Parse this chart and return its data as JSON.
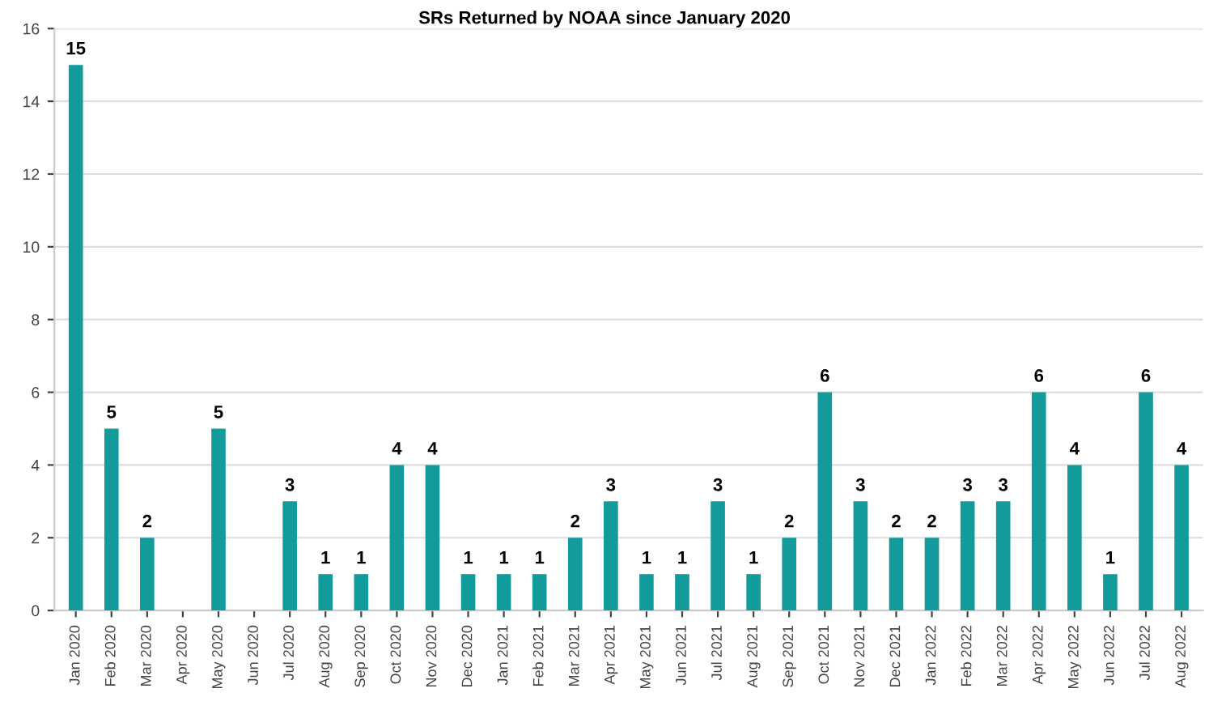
{
  "chart_data": {
    "type": "bar",
    "title": "SRs Returned by NOAA since January 2020",
    "categories": [
      "Jan 2020",
      "Feb 2020",
      "Mar 2020",
      "Apr 2020",
      "May 2020",
      "Jun 2020",
      "Jul 2020",
      "Aug 2020",
      "Sep 2020",
      "Oct 2020",
      "Nov 2020",
      "Dec 2020",
      "Jan 2021",
      "Feb 2021",
      "Mar 2021",
      "Apr 2021",
      "May 2021",
      "Jun 2021",
      "Jul 2021",
      "Aug 2021",
      "Sep 2021",
      "Oct 2021",
      "Nov 2021",
      "Dec 2021",
      "Jan 2022",
      "Feb 2022",
      "Mar 2022",
      "Apr 2022",
      "May 2022",
      "Jun 2022",
      "Jul 2022",
      "Aug 2022"
    ],
    "values": [
      15,
      5,
      2,
      0,
      5,
      0,
      3,
      1,
      1,
      4,
      4,
      1,
      1,
      1,
      2,
      3,
      1,
      1,
      3,
      1,
      2,
      6,
      3,
      2,
      2,
      3,
      3,
      6,
      4,
      1,
      6,
      4
    ],
    "value_labels": [
      "15",
      "5",
      "2",
      null,
      "5",
      null,
      "3",
      "1",
      "1",
      "4",
      "4",
      "1",
      "1",
      "1",
      "2",
      "3",
      "1",
      "1",
      "3",
      "1",
      "2",
      "6",
      "3",
      "2",
      "2",
      "3",
      "3",
      "6",
      "4",
      "1",
      "6",
      "4"
    ],
    "color": "#139a9a",
    "ylim": [
      0,
      16
    ],
    "yticks": [
      0,
      2,
      4,
      6,
      8,
      10,
      12,
      14,
      16
    ],
    "grid": "y"
  }
}
